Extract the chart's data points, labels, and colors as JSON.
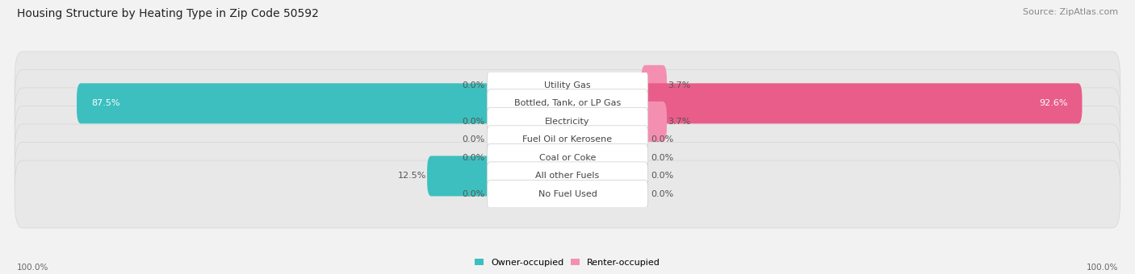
{
  "title": "Housing Structure by Heating Type in Zip Code 50592",
  "source": "Source: ZipAtlas.com",
  "categories": [
    "Utility Gas",
    "Bottled, Tank, or LP Gas",
    "Electricity",
    "Fuel Oil or Kerosene",
    "Coal or Coke",
    "All other Fuels",
    "No Fuel Used"
  ],
  "owner_values": [
    0.0,
    87.5,
    0.0,
    0.0,
    0.0,
    12.5,
    0.0
  ],
  "renter_values": [
    3.7,
    92.6,
    3.7,
    0.0,
    0.0,
    0.0,
    0.0
  ],
  "owner_color": "#3dbfbf",
  "renter_color": "#f48fb1",
  "renter_color_large": "#e85d8a",
  "background_color": "#f2f2f2",
  "row_bg_color": "#e5e5e5",
  "row_bg_light": "#eeeeee",
  "title_fontsize": 10,
  "source_fontsize": 8,
  "label_fontsize": 8,
  "cat_fontsize": 8
}
